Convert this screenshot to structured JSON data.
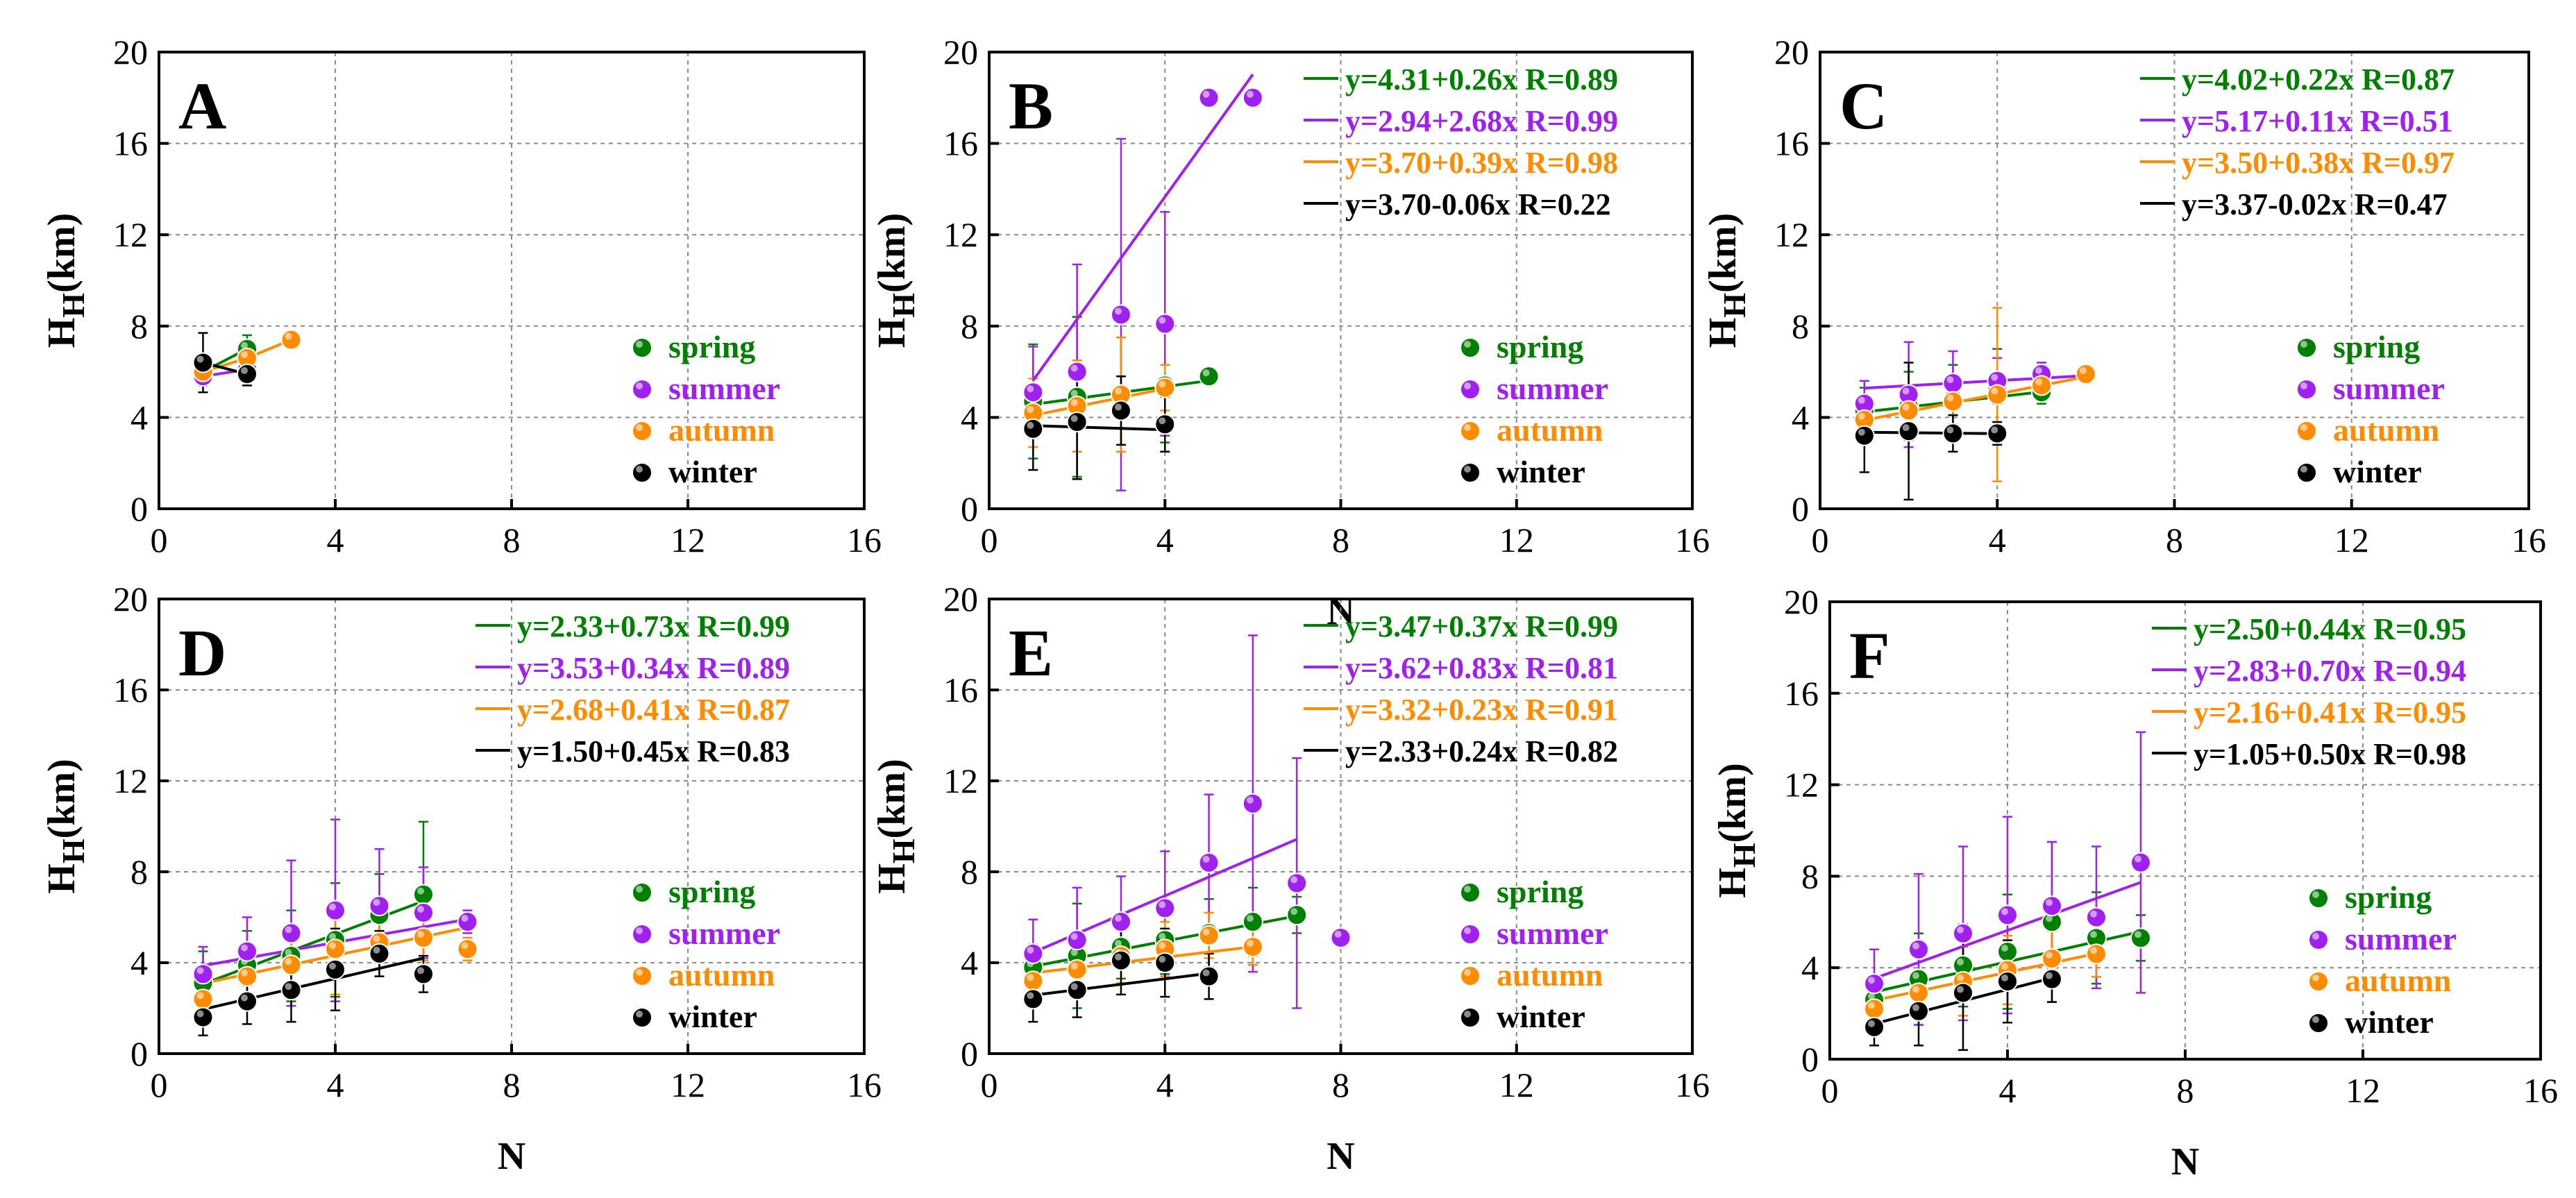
{
  "chart_data": [
    {
      "type": "scatter",
      "panel_label": "A",
      "xlabel": "",
      "ylabel": "H_H(km)",
      "xlim": [
        0,
        16
      ],
      "ylim": [
        0,
        20
      ],
      "xticks": [
        0,
        4,
        8,
        12,
        16
      ],
      "yticks": [
        0,
        4,
        8,
        12,
        16,
        20
      ],
      "grid": true,
      "legend": [
        "spring",
        "summer",
        "autumn",
        "winter"
      ],
      "fits": [],
      "series": [
        {
          "name": "spring",
          "color": "#008000",
          "x": [
            1,
            2
          ],
          "y": [
            6.0,
            7.0
          ],
          "err": [
            0.5,
            0.6
          ]
        },
        {
          "name": "summer",
          "color": "#A020F0",
          "x": [
            1,
            2
          ],
          "y": [
            5.8,
            6.1
          ],
          "err": [
            0.4,
            0.4
          ]
        },
        {
          "name": "autumn",
          "color": "#FF8C00",
          "x": [
            1,
            2,
            3
          ],
          "y": [
            6.0,
            6.6,
            7.4
          ],
          "err": [
            0.4,
            0.5,
            0.3
          ]
        },
        {
          "name": "winter",
          "color": "#000000",
          "x": [
            1,
            2
          ],
          "y": [
            6.4,
            5.9
          ],
          "err": [
            1.3,
            0.5
          ]
        }
      ]
    },
    {
      "type": "scatter",
      "panel_label": "B",
      "xlabel": "N",
      "ylabel": "H_H(km)",
      "xlim": [
        0,
        16
      ],
      "ylim": [
        0,
        20
      ],
      "xticks": [
        0,
        4,
        8,
        12,
        16
      ],
      "yticks": [
        0,
        4,
        8,
        12,
        16,
        20
      ],
      "grid": true,
      "legend": [
        "spring",
        "summer",
        "autumn",
        "winter"
      ],
      "fits": [
        {
          "text": "y=4.31+0.26x  R=0.89",
          "color": "#008000",
          "a": 4.31,
          "b": 0.26,
          "x0": 1,
          "x1": 5
        },
        {
          "text": "y=2.94+2.68x  R=0.99",
          "color": "#A020F0",
          "a": 2.94,
          "b": 2.68,
          "x0": 1,
          "x1": 6
        },
        {
          "text": "y=3.70+0.39x  R=0.98",
          "color": "#FF8C00",
          "a": 3.7,
          "b": 0.39,
          "x0": 1,
          "x1": 4
        },
        {
          "text": "y=3.70-0.06x   R=0.22",
          "color": "#000000",
          "a": 3.7,
          "b": -0.06,
          "x0": 1,
          "x1": 4
        }
      ],
      "series": [
        {
          "name": "spring",
          "color": "#008000",
          "x": [
            1,
            2,
            3,
            4,
            5
          ],
          "y": [
            4.7,
            4.9,
            5.0,
            5.4,
            5.8
          ],
          "err": [
            2.5,
            3.5,
            2.5,
            2.5,
            0
          ]
        },
        {
          "name": "summer",
          "color": "#A020F0",
          "x": [
            1,
            2,
            3,
            4,
            5,
            6
          ],
          "y": [
            5.1,
            6.0,
            8.5,
            8.1,
            18.0,
            18.0
          ],
          "err": [
            2.0,
            4.7,
            7.7,
            4.9,
            0,
            0
          ]
        },
        {
          "name": "autumn",
          "color": "#FF8C00",
          "x": [
            1,
            2,
            3,
            4
          ],
          "y": [
            4.2,
            4.5,
            5.0,
            5.3
          ],
          "err": [
            1.5,
            2.0,
            2.5,
            1.0
          ]
        },
        {
          "name": "winter",
          "color": "#000000",
          "x": [
            1,
            2,
            3,
            4
          ],
          "y": [
            3.5,
            3.8,
            4.3,
            3.7
          ],
          "err": [
            1.8,
            2.5,
            1.5,
            1.2
          ]
        }
      ]
    },
    {
      "type": "scatter",
      "panel_label": "C",
      "xlabel": "",
      "ylabel": "H_H(km)",
      "xlim": [
        0,
        16
      ],
      "ylim": [
        0,
        20
      ],
      "xticks": [
        0,
        4,
        8,
        12,
        16
      ],
      "yticks": [
        0,
        4,
        8,
        12,
        16,
        20
      ],
      "grid": true,
      "legend": [
        "spring",
        "summer",
        "autumn",
        "winter"
      ],
      "fits": [
        {
          "text": "y=4.02+0.22x  R=0.87",
          "color": "#008000",
          "a": 4.02,
          "b": 0.22,
          "x0": 1,
          "x1": 5
        },
        {
          "text": "y=5.17+0.11x  R=0.51",
          "color": "#A020F0",
          "a": 5.17,
          "b": 0.11,
          "x0": 1,
          "x1": 6
        },
        {
          "text": "y=3.50+0.38x  R=0.97",
          "color": "#FF8C00",
          "a": 3.5,
          "b": 0.38,
          "x0": 1,
          "x1": 6
        },
        {
          "text": "y=3.37-0.02x   R=0.47",
          "color": "#000000",
          "a": 3.37,
          "b": -0.02,
          "x0": 1,
          "x1": 4
        }
      ],
      "series": [
        {
          "name": "spring",
          "color": "#008000",
          "x": [
            1,
            2,
            3,
            4,
            5
          ],
          "y": [
            4.3,
            4.5,
            4.8,
            5.2,
            5.1
          ],
          "err": [
            1.0,
            1.5,
            1.5,
            1.8,
            0.5
          ]
        },
        {
          "name": "summer",
          "color": "#A020F0",
          "x": [
            1,
            2,
            3,
            4,
            5,
            6
          ],
          "y": [
            4.6,
            5.0,
            5.5,
            5.6,
            5.9,
            5.9
          ],
          "err": [
            1.0,
            2.3,
            1.4,
            1.0,
            0.5,
            0.3
          ]
        },
        {
          "name": "autumn",
          "color": "#FF8C00",
          "x": [
            1,
            2,
            3,
            4,
            5,
            6
          ],
          "y": [
            3.9,
            4.3,
            4.7,
            5.0,
            5.4,
            5.9
          ],
          "err": [
            0.8,
            1.0,
            1.0,
            3.8,
            0.6,
            0.3
          ]
        },
        {
          "name": "winter",
          "color": "#000000",
          "x": [
            1,
            2,
            3,
            4
          ],
          "y": [
            3.2,
            3.4,
            3.3,
            3.3
          ],
          "err": [
            1.6,
            3.0,
            0.8,
            0.5
          ]
        }
      ]
    },
    {
      "type": "scatter",
      "panel_label": "D",
      "xlabel": "N",
      "ylabel": "H_H(km)",
      "xlim": [
        0,
        16
      ],
      "ylim": [
        0,
        20
      ],
      "xticks": [
        0,
        4,
        8,
        12,
        16
      ],
      "yticks": [
        0,
        4,
        8,
        12,
        16,
        20
      ],
      "grid": true,
      "legend": [
        "spring",
        "summer",
        "autumn",
        "winter"
      ],
      "fits": [
        {
          "text": "y=2.33+0.73x  R=0.99",
          "color": "#008000",
          "a": 2.33,
          "b": 0.73,
          "x0": 1,
          "x1": 6
        },
        {
          "text": "y=3.53+0.34x  R=0.89",
          "color": "#A020F0",
          "a": 3.53,
          "b": 0.34,
          "x0": 1,
          "x1": 7
        },
        {
          "text": "y=2.68+0.41x  R=0.87",
          "color": "#FF8C00",
          "a": 2.68,
          "b": 0.41,
          "x0": 1,
          "x1": 7
        },
        {
          "text": "y=1.50+0.45x   R=0.83",
          "color": "#000000",
          "a": 1.5,
          "b": 0.45,
          "x0": 1,
          "x1": 6
        }
      ],
      "series": [
        {
          "name": "spring",
          "color": "#008000",
          "x": [
            1,
            2,
            3,
            4,
            5,
            6
          ],
          "y": [
            3.1,
            3.9,
            4.3,
            5.0,
            6.1,
            7.0
          ],
          "err": [
            1.4,
            1.5,
            2.0,
            2.5,
            1.8,
            3.2
          ]
        },
        {
          "name": "summer",
          "color": "#A020F0",
          "x": [
            1,
            2,
            3,
            4,
            5,
            6,
            7
          ],
          "y": [
            3.5,
            4.5,
            5.3,
            6.3,
            6.5,
            6.2,
            5.8
          ],
          "err": [
            1.2,
            1.5,
            3.2,
            4.0,
            2.5,
            2.0,
            0.5
          ]
        },
        {
          "name": "autumn",
          "color": "#FF8C00",
          "x": [
            1,
            2,
            3,
            4,
            5,
            6,
            7
          ],
          "y": [
            2.4,
            3.4,
            3.9,
            4.6,
            4.9,
            5.1,
            4.6
          ],
          "err": [
            1.0,
            1.2,
            1.5,
            2.0,
            1.5,
            1.0,
            0.5
          ]
        },
        {
          "name": "winter",
          "color": "#000000",
          "x": [
            1,
            2,
            3,
            4,
            5,
            6
          ],
          "y": [
            1.6,
            2.3,
            2.8,
            3.7,
            4.4,
            3.5
          ],
          "err": [
            0.8,
            1.0,
            1.4,
            1.8,
            1.0,
            0.8
          ]
        }
      ]
    },
    {
      "type": "scatter",
      "panel_label": "E",
      "xlabel": "N",
      "ylabel": "H_H(km)",
      "xlim": [
        0,
        16
      ],
      "ylim": [
        0,
        20
      ],
      "xticks": [
        0,
        4,
        8,
        12,
        16
      ],
      "yticks": [
        0,
        4,
        8,
        12,
        16,
        20
      ],
      "grid": true,
      "legend": [
        "spring",
        "summer",
        "autumn",
        "winter"
      ],
      "fits": [
        {
          "text": "y=3.47+0.37x  R=0.99",
          "color": "#008000",
          "a": 3.47,
          "b": 0.37,
          "x0": 1,
          "x1": 7
        },
        {
          "text": "y=3.62+0.83x  R=0.81",
          "color": "#A020F0",
          "a": 3.62,
          "b": 0.83,
          "x0": 1,
          "x1": 7
        },
        {
          "text": "y=3.32+0.23x  R=0.91",
          "color": "#FF8C00",
          "a": 3.32,
          "b": 0.23,
          "x0": 1,
          "x1": 6
        },
        {
          "text": "y=2.33+0.24x   R=0.82",
          "color": "#000000",
          "a": 2.33,
          "b": 0.24,
          "x0": 1,
          "x1": 5
        }
      ],
      "series": [
        {
          "name": "spring",
          "color": "#008000",
          "x": [
            1,
            2,
            3,
            4,
            5,
            6,
            7
          ],
          "y": [
            3.8,
            4.3,
            4.7,
            5.0,
            5.3,
            5.8,
            6.1
          ],
          "err": [
            1.0,
            2.3,
            1.4,
            1.5,
            1.5,
            1.5,
            0.8
          ]
        },
        {
          "name": "summer",
          "color": "#A020F0",
          "x": [
            1,
            2,
            3,
            4,
            5,
            6,
            7,
            8
          ],
          "y": [
            4.4,
            5.0,
            5.8,
            6.4,
            8.4,
            11.0,
            7.5,
            5.1
          ],
          "err": [
            1.5,
            2.3,
            2.0,
            2.5,
            3.0,
            7.4,
            5.5,
            0
          ]
        },
        {
          "name": "autumn",
          "color": "#FF8C00",
          "x": [
            1,
            2,
            3,
            4,
            5,
            6
          ],
          "y": [
            3.2,
            3.7,
            4.3,
            4.6,
            5.2,
            4.7
          ],
          "err": [
            1.0,
            1.0,
            1.2,
            1.2,
            1.0,
            0.8
          ]
        },
        {
          "name": "winter",
          "color": "#000000",
          "x": [
            1,
            2,
            3,
            4,
            5
          ],
          "y": [
            2.4,
            2.8,
            4.1,
            4.0,
            3.4
          ],
          "err": [
            1.0,
            1.2,
            1.5,
            1.5,
            1.0
          ]
        }
      ]
    },
    {
      "type": "scatter",
      "panel_label": "F",
      "xlabel": "N",
      "ylabel": "H_H(km)",
      "xlim": [
        0,
        16
      ],
      "ylim": [
        0,
        20
      ],
      "xticks": [
        0,
        4,
        8,
        12,
        16
      ],
      "yticks": [
        0,
        4,
        8,
        12,
        16,
        20
      ],
      "grid": true,
      "legend": [
        "spring",
        "summer",
        "autumn",
        "winter"
      ],
      "fits": [
        {
          "text": "y=2.50+0.44x  R=0.95",
          "color": "#008000",
          "a": 2.5,
          "b": 0.44,
          "x0": 1,
          "x1": 7
        },
        {
          "text": "y=2.83+0.70x  R=0.94",
          "color": "#A020F0",
          "a": 2.83,
          "b": 0.7,
          "x0": 1,
          "x1": 7
        },
        {
          "text": "y=2.16+0.41x  R=0.95",
          "color": "#FF8C00",
          "a": 2.16,
          "b": 0.41,
          "x0": 1,
          "x1": 6
        },
        {
          "text": "y=1.05+0.50x   R=0.98",
          "color": "#000000",
          "a": 1.05,
          "b": 0.5,
          "x0": 1,
          "x1": 5
        }
      ],
      "series": [
        {
          "name": "spring",
          "color": "#008000",
          "x": [
            1,
            2,
            3,
            4,
            5,
            6,
            7
          ],
          "y": [
            2.6,
            3.5,
            4.1,
            4.7,
            6.0,
            5.3,
            5.3
          ],
          "err": [
            1.0,
            2.0,
            1.8,
            2.5,
            3.5,
            2.0,
            1.0
          ]
        },
        {
          "name": "summer",
          "color": "#A020F0",
          "x": [
            1,
            2,
            3,
            4,
            5,
            6,
            7
          ],
          "y": [
            3.3,
            4.8,
            5.5,
            6.3,
            6.7,
            6.2,
            8.6
          ],
          "err": [
            1.5,
            3.3,
            3.8,
            4.3,
            2.8,
            3.1,
            5.7
          ]
        },
        {
          "name": "autumn",
          "color": "#FF8C00",
          "x": [
            1,
            2,
            3,
            4,
            5,
            6
          ],
          "y": [
            2.2,
            2.9,
            3.4,
            3.9,
            4.4,
            4.6
          ],
          "err": [
            0.8,
            1.0,
            1.5,
            1.5,
            1.2,
            1.0
          ]
        },
        {
          "name": "winter",
          "color": "#000000",
          "x": [
            1,
            2,
            3,
            4,
            5
          ],
          "y": [
            1.4,
            2.1,
            2.9,
            3.4,
            3.5
          ],
          "err": [
            0.8,
            1.5,
            2.5,
            1.8,
            1.0
          ]
        }
      ]
    }
  ]
}
